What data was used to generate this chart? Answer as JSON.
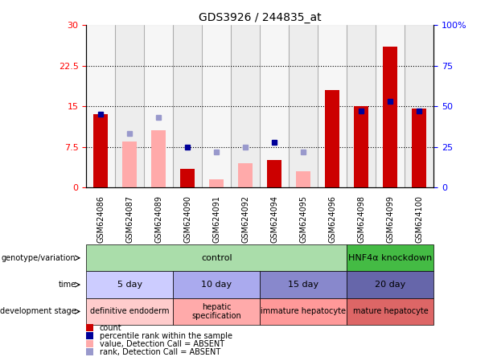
{
  "title": "GDS3926 / 244835_at",
  "samples": [
    "GSM624086",
    "GSM624087",
    "GSM624089",
    "GSM624090",
    "GSM624091",
    "GSM624092",
    "GSM624094",
    "GSM624095",
    "GSM624096",
    "GSM624098",
    "GSM624099",
    "GSM624100"
  ],
  "red_bars": [
    13.5,
    null,
    null,
    3.5,
    null,
    null,
    5.0,
    null,
    18.0,
    15.0,
    26.0,
    14.5
  ],
  "pink_bars": [
    null,
    8.5,
    10.5,
    null,
    1.5,
    4.5,
    null,
    3.0,
    null,
    null,
    null,
    null
  ],
  "blue_squares_pct": [
    45,
    null,
    null,
    25,
    null,
    null,
    28,
    null,
    null,
    47,
    53,
    47
  ],
  "light_blue_squares_pct": [
    null,
    33,
    43,
    null,
    22,
    25,
    null,
    22,
    null,
    null,
    null,
    null
  ],
  "ylim_left": [
    0,
    30
  ],
  "ylim_right": [
    0,
    100
  ],
  "yticks_left": [
    0,
    7.5,
    15,
    22.5,
    30
  ],
  "yticks_right": [
    0,
    25,
    50,
    75,
    100
  ],
  "ytick_labels_left": [
    "0",
    "7.5",
    "15",
    "22.5",
    "30"
  ],
  "ytick_labels_right": [
    "0",
    "25",
    "50",
    "75",
    "100%"
  ],
  "hlines": [
    7.5,
    15,
    22.5
  ],
  "color_control": "#AADDAA",
  "color_hnf4a": "#44BB44",
  "time_colors": [
    "#CCCCFF",
    "#AAAAEE",
    "#8888CC",
    "#6666AA"
  ],
  "dev_colors": [
    "#FFCCCC",
    "#FFAAAA",
    "#FF9999",
    "#DD6666"
  ],
  "red_bar_color": "#CC0000",
  "pink_bar_color": "#FFAAAA",
  "blue_sq_color": "#000099",
  "light_blue_sq_color": "#9999CC",
  "bar_width": 0.5,
  "sq_size": 5,
  "genotype_row_label": "genotype/variation",
  "time_row_label": "time",
  "dev_row_label": "development stage",
  "time_spans": [
    [
      0,
      3,
      "5 day"
    ],
    [
      3,
      6,
      "10 day"
    ],
    [
      6,
      9,
      "15 day"
    ],
    [
      9,
      12,
      "20 day"
    ]
  ],
  "dev_spans": [
    [
      0,
      3,
      "definitive endoderm"
    ],
    [
      3,
      6,
      "hepatic\nspecification"
    ],
    [
      6,
      9,
      "immature hepatocyte"
    ],
    [
      9,
      12,
      "mature hepatocyte"
    ]
  ]
}
